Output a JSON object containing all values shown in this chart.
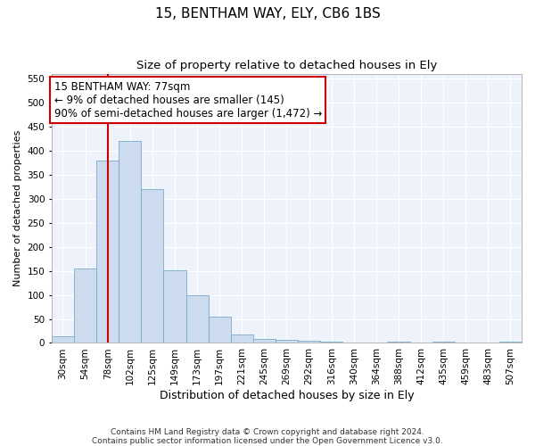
{
  "title": "15, BENTHAM WAY, ELY, CB6 1BS",
  "subtitle": "Size of property relative to detached houses in Ely",
  "xlabel": "Distribution of detached houses by size in Ely",
  "ylabel": "Number of detached properties",
  "categories": [
    "30sqm",
    "54sqm",
    "78sqm",
    "102sqm",
    "125sqm",
    "149sqm",
    "173sqm",
    "197sqm",
    "221sqm",
    "245sqm",
    "269sqm",
    "292sqm",
    "316sqm",
    "340sqm",
    "364sqm",
    "388sqm",
    "412sqm",
    "435sqm",
    "459sqm",
    "483sqm",
    "507sqm"
  ],
  "values": [
    13,
    155,
    380,
    420,
    320,
    152,
    100,
    55,
    18,
    9,
    7,
    4,
    2,
    0,
    0,
    3,
    0,
    2,
    0,
    1,
    2
  ],
  "bar_color": "#ccdcee",
  "bar_edge_color": "#7aaaca",
  "annotation_box_text": "15 BENTHAM WAY: 77sqm\n← 9% of detached houses are smaller (145)\n90% of semi-detached houses are larger (1,472) →",
  "annotation_box_color": "#cc0000",
  "vline_color": "#cc0000",
  "vline_x_index": 2,
  "ylim": [
    0,
    560
  ],
  "yticks": [
    0,
    50,
    100,
    150,
    200,
    250,
    300,
    350,
    400,
    450,
    500,
    550
  ],
  "background_color": "#eef2fb",
  "grid_color": "#ffffff",
  "footer": "Contains HM Land Registry data © Crown copyright and database right 2024.\nContains public sector information licensed under the Open Government Licence v3.0.",
  "title_fontsize": 11,
  "subtitle_fontsize": 9.5,
  "xlabel_fontsize": 9,
  "ylabel_fontsize": 8,
  "tick_fontsize": 7.5,
  "annotation_fontsize": 8.5,
  "footer_fontsize": 6.5
}
